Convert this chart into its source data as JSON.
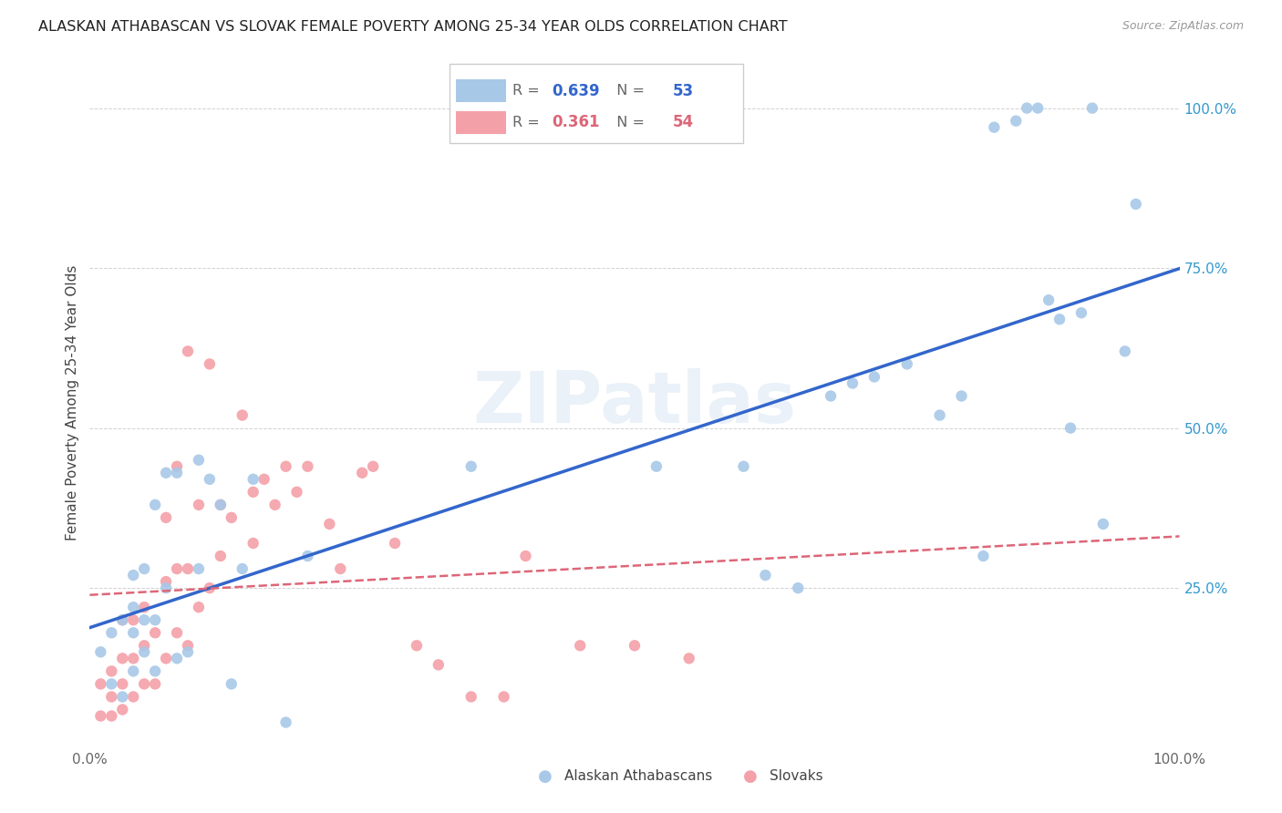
{
  "title": "ALASKAN ATHABASCAN VS SLOVAK FEMALE POVERTY AMONG 25-34 YEAR OLDS CORRELATION CHART",
  "source": "Source: ZipAtlas.com",
  "ylabel": "Female Poverty Among 25-34 Year Olds",
  "ytick_labels": [
    "25.0%",
    "50.0%",
    "75.0%",
    "100.0%"
  ],
  "ytick_values": [
    0.25,
    0.5,
    0.75,
    1.0
  ],
  "legend_blue_R": "0.639",
  "legend_blue_N": "53",
  "legend_pink_R": "0.361",
  "legend_pink_N": "54",
  "legend_label_blue": "Alaskan Athabascans",
  "legend_label_pink": "Slovaks",
  "blue_color": "#a8c8e8",
  "pink_color": "#f4a0a8",
  "blue_line_color": "#3366cc",
  "pink_line_color": "#dd6677",
  "watermark": "ZIPatlas",
  "blue_scatter_x": [
    0.01,
    0.02,
    0.02,
    0.03,
    0.03,
    0.04,
    0.04,
    0.04,
    0.04,
    0.05,
    0.05,
    0.05,
    0.06,
    0.06,
    0.06,
    0.07,
    0.07,
    0.08,
    0.08,
    0.09,
    0.1,
    0.1,
    0.11,
    0.12,
    0.13,
    0.14,
    0.15,
    0.18,
    0.2,
    0.35,
    0.52,
    0.6,
    0.62,
    0.65,
    0.68,
    0.7,
    0.72,
    0.75,
    0.78,
    0.8,
    0.82,
    0.83,
    0.85,
    0.86,
    0.87,
    0.88,
    0.89,
    0.9,
    0.91,
    0.92,
    0.93,
    0.95,
    0.96
  ],
  "blue_scatter_y": [
    0.15,
    0.1,
    0.18,
    0.08,
    0.2,
    0.12,
    0.18,
    0.22,
    0.27,
    0.15,
    0.2,
    0.28,
    0.12,
    0.2,
    0.38,
    0.25,
    0.43,
    0.14,
    0.43,
    0.15,
    0.28,
    0.45,
    0.42,
    0.38,
    0.1,
    0.28,
    0.42,
    0.04,
    0.3,
    0.44,
    0.44,
    0.44,
    0.27,
    0.25,
    0.55,
    0.57,
    0.58,
    0.6,
    0.52,
    0.55,
    0.3,
    0.97,
    0.98,
    1.0,
    1.0,
    0.7,
    0.67,
    0.5,
    0.68,
    1.0,
    0.35,
    0.62,
    0.85
  ],
  "pink_scatter_x": [
    0.01,
    0.01,
    0.02,
    0.02,
    0.02,
    0.03,
    0.03,
    0.03,
    0.03,
    0.04,
    0.04,
    0.04,
    0.05,
    0.05,
    0.05,
    0.06,
    0.06,
    0.07,
    0.07,
    0.07,
    0.08,
    0.08,
    0.08,
    0.09,
    0.09,
    0.09,
    0.1,
    0.1,
    0.11,
    0.11,
    0.12,
    0.12,
    0.13,
    0.14,
    0.15,
    0.15,
    0.16,
    0.17,
    0.18,
    0.19,
    0.2,
    0.22,
    0.23,
    0.25,
    0.26,
    0.28,
    0.3,
    0.32,
    0.35,
    0.38,
    0.4,
    0.45,
    0.5,
    0.55
  ],
  "pink_scatter_y": [
    0.05,
    0.1,
    0.05,
    0.08,
    0.12,
    0.06,
    0.1,
    0.14,
    0.2,
    0.08,
    0.14,
    0.2,
    0.1,
    0.16,
    0.22,
    0.1,
    0.18,
    0.14,
    0.26,
    0.36,
    0.18,
    0.28,
    0.44,
    0.16,
    0.28,
    0.62,
    0.22,
    0.38,
    0.25,
    0.6,
    0.3,
    0.38,
    0.36,
    0.52,
    0.32,
    0.4,
    0.42,
    0.38,
    0.44,
    0.4,
    0.44,
    0.35,
    0.28,
    0.43,
    0.44,
    0.32,
    0.16,
    0.13,
    0.08,
    0.08,
    0.3,
    0.16,
    0.16,
    0.14
  ]
}
